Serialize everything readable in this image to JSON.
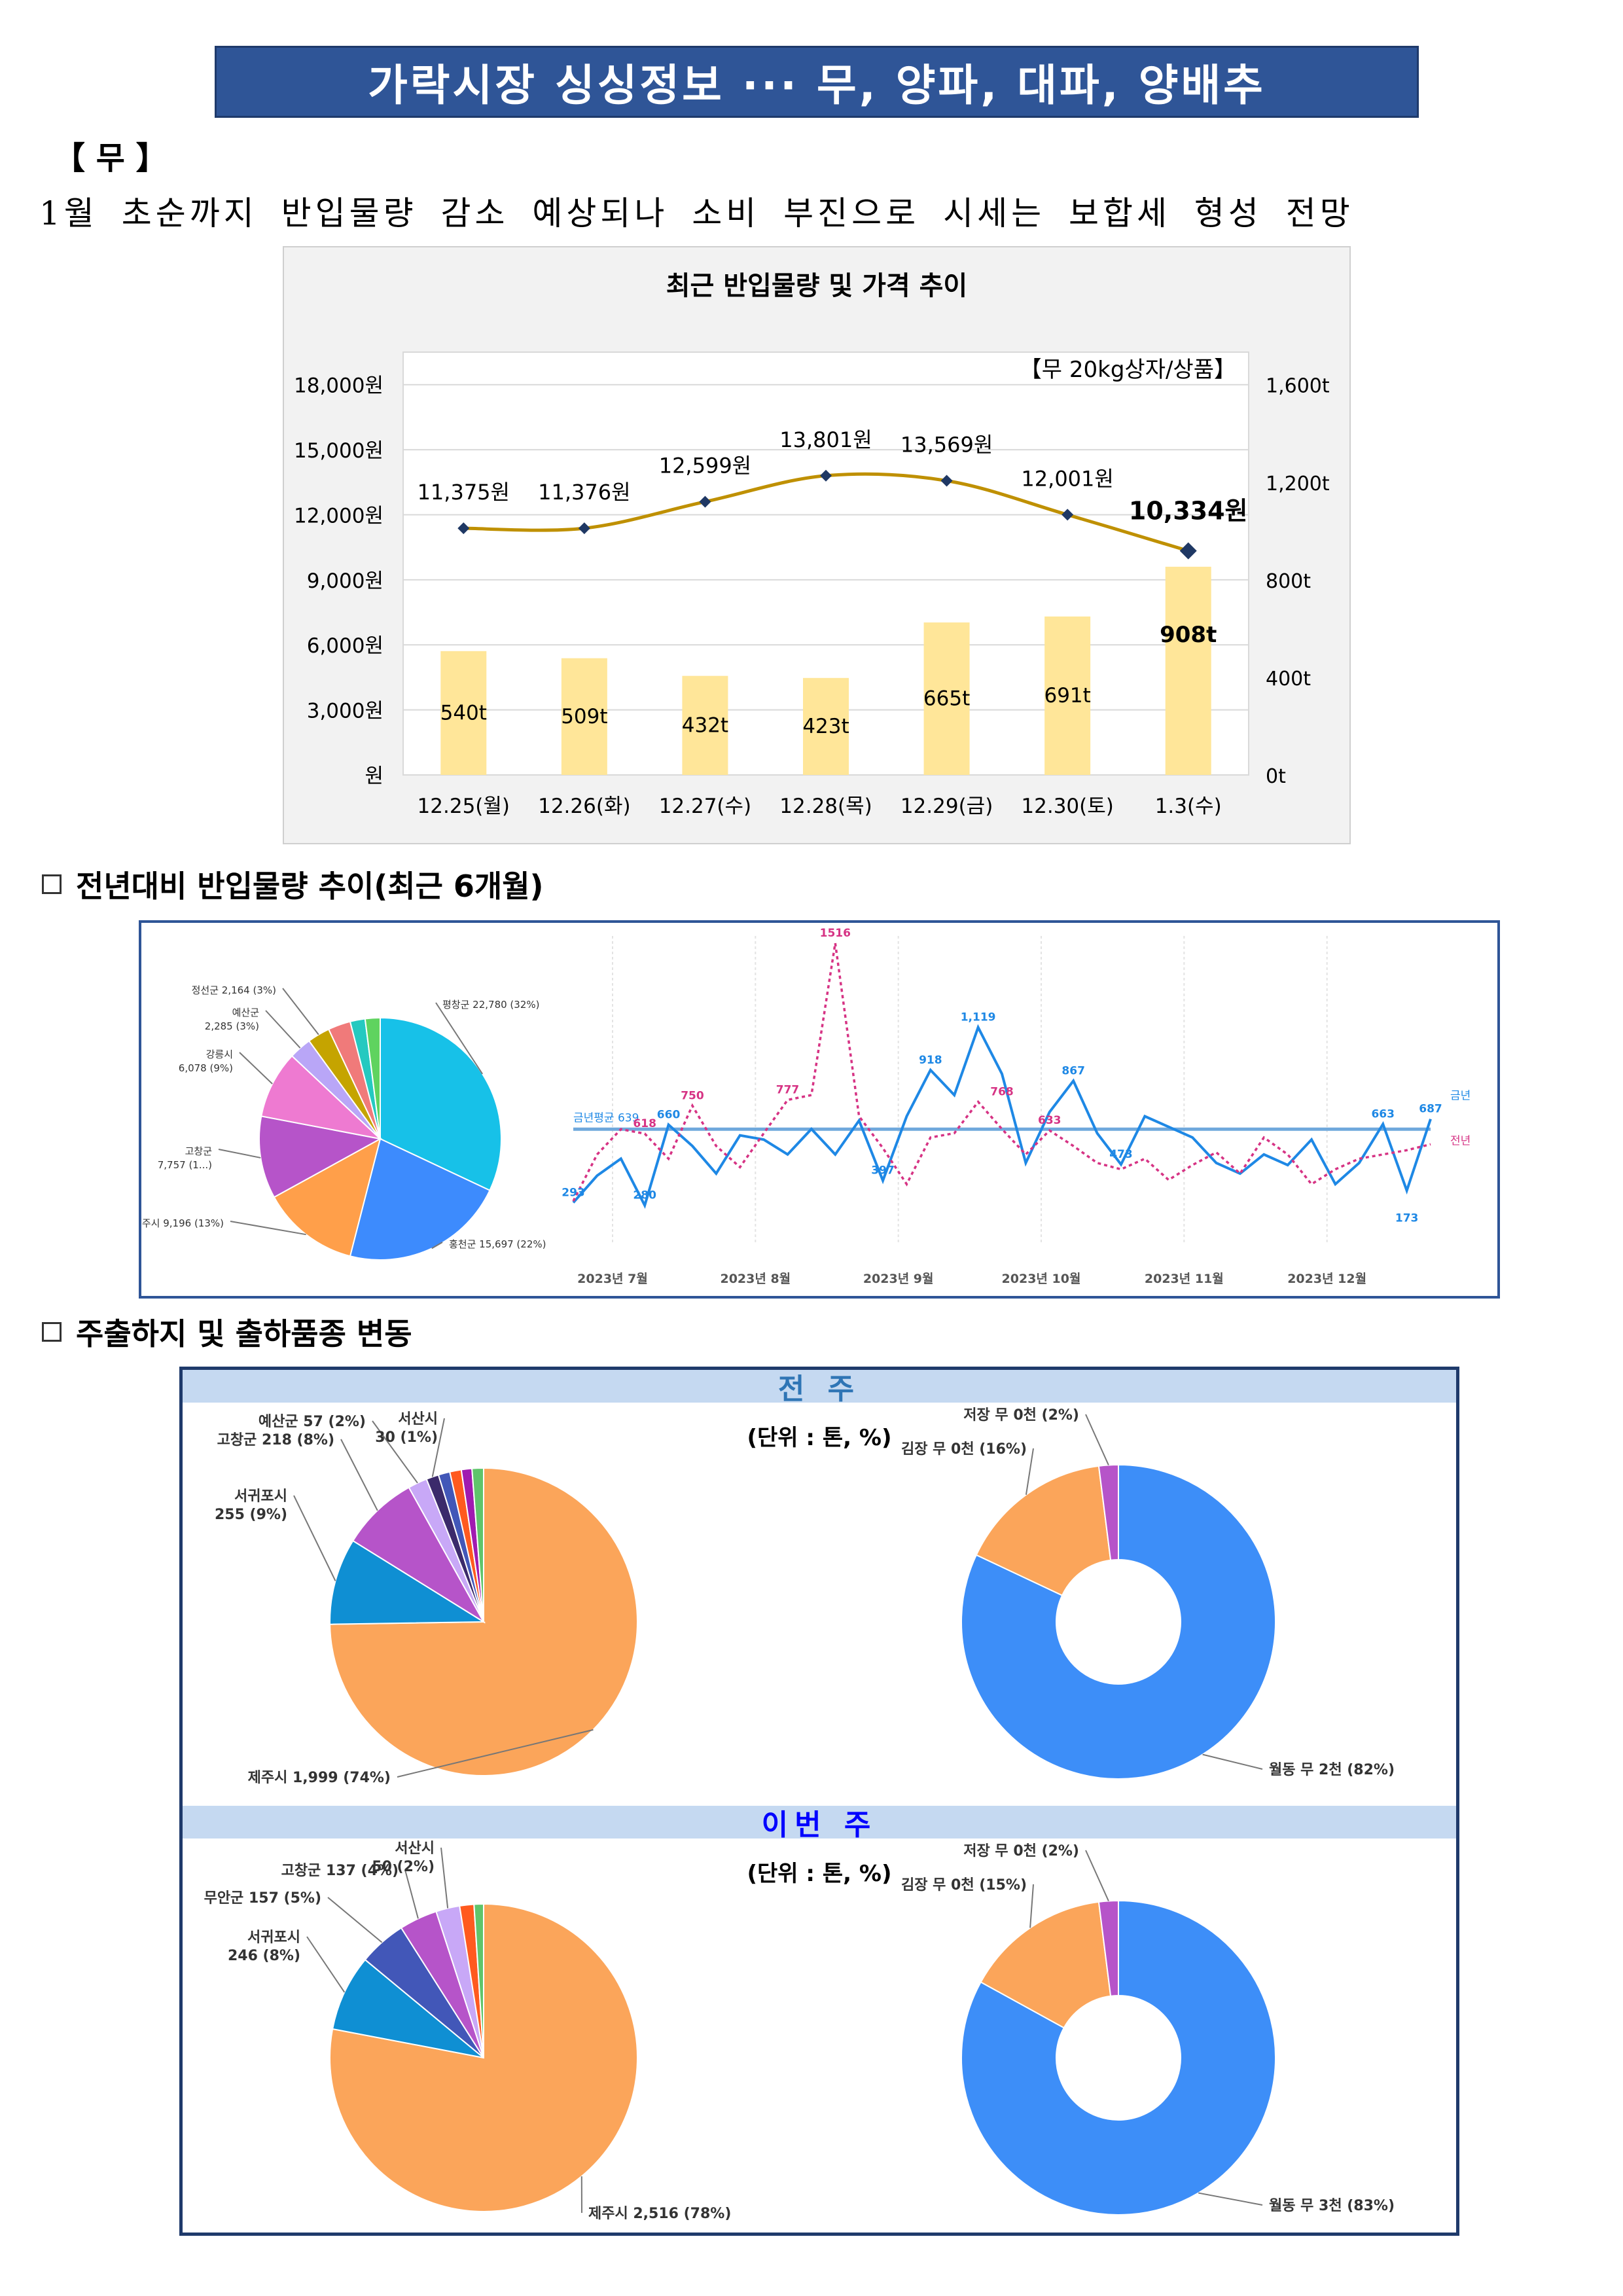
{
  "title": "가락시장 싱싱정보 ··· 무, 양파, 대파, 양배추",
  "section": "【 무 】",
  "summary": "1월 초순까지 반입물량 감소 예상되나 소비 부진으로 시세는 보합세 형성 전망",
  "section2_title": "전년대비 반입물량 추이(최근 6개월)",
  "section3_title": "주출하지 및 출하품종 변동",
  "prev_week_label": "전 주",
  "this_week_label": "이번 주",
  "unit_label": "(단위 : 톤, %)",
  "chart_data": [
    {
      "type": "bar+line",
      "title": "최근 반입물량 및 가격 추이",
      "note": "【무 20kg상자/상품】",
      "categories": [
        "12.25(월)",
        "12.26(화)",
        "12.27(수)",
        "12.28(목)",
        "12.29(금)",
        "12.30(토)",
        "1.3(수)"
      ],
      "volume": {
        "values": [
          540,
          509,
          432,
          423,
          665,
          691,
          908
        ],
        "labels": [
          "540t",
          "509t",
          "432t",
          "423t",
          "665t",
          "691t",
          "908t"
        ],
        "ylim": [
          0,
          1600
        ],
        "ticks": [
          "0t",
          "400t",
          "800t",
          "1,200t",
          "1,600t"
        ],
        "color": "#ffe699"
      },
      "price": {
        "values": [
          11375,
          11376,
          12599,
          13801,
          13569,
          12001,
          10334
        ],
        "labels": [
          "11,375원",
          "11,376원",
          "12,599원",
          "13,801원",
          "13,569원",
          "12,001원",
          "10,334원"
        ],
        "ylim": [
          0,
          19500
        ],
        "ticks": [
          "원",
          "3,000원",
          "6,000원",
          "9,000원",
          "12,000원",
          "15,000원",
          "18,000원"
        ],
        "color": "#bf9000"
      }
    },
    {
      "type": "pie",
      "slices": [
        {
          "label": "평창군 22,780 (32%)",
          "value": 32,
          "color": "#17c1e8"
        },
        {
          "label": "홍천군 15,697 (22%)",
          "value": 22,
          "color": "#3d8bfd"
        },
        {
          "label": "제주시 9,196 (13%)",
          "value": 13,
          "color": "#ff9f4a"
        },
        {
          "label": "고창군 7,757 (1...)",
          "value": 11,
          "color": "#b654c9"
        },
        {
          "label": "강릉시 6,078 (9%)",
          "value": 9,
          "color": "#ee7ad1"
        },
        {
          "label": "예산군 2,285 (3%)",
          "value": 3,
          "color": "#b9a6f7"
        },
        {
          "label": "정선군 2,164 (3%)",
          "value": 3,
          "color": "#c5a400"
        },
        {
          "label": "",
          "value": 3,
          "color": "#f07a7a"
        },
        {
          "label": "",
          "value": 2,
          "color": "#25c9c0"
        },
        {
          "label": "",
          "value": 2,
          "color": "#5fd35f"
        }
      ]
    },
    {
      "type": "line",
      "x_labels": [
        "2023년 7월",
        "2023년 8월",
        "2023년 9월",
        "2023년 10월",
        "2023년 11월",
        "2023년 12월"
      ],
      "series": [
        {
          "name": "금년",
          "color": "#1e88e5",
          "values": [
            293,
            420,
            500,
            280,
            660,
            560,
            430,
            610,
            590,
            520,
            640,
            520,
            680,
            397,
            700,
            918,
            800,
            1119,
            900,
            480,
            720,
            867,
            620,
            473,
            700,
            650,
            600,
            480,
            430,
            520,
            470,
            590,
            380,
            480,
            663,
            350,
            687
          ]
        },
        {
          "name": "전년",
          "color": "#d63384",
          "values": [
            300,
            520,
            639,
            618,
            500,
            750,
            560,
            460,
            620,
            777,
            800,
            1516,
            700,
            550,
            380,
            600,
            620,
            768,
            640,
            520,
            633,
            560,
            480,
            450,
            500,
            400,
            470,
            530,
            430,
            600,
            520,
            380,
            450,
            500,
            520,
            540,
            568
          ]
        }
      ],
      "reference_label": "금년평균 639",
      "annotations": [
        "1516",
        "1,119",
        "918",
        "867",
        "777",
        "768",
        "750",
        "660",
        "663",
        "687",
        "633",
        "618",
        "397",
        "473",
        "293",
        "280",
        "173"
      ]
    },
    {
      "type": "pie",
      "period": "전 주",
      "slices": [
        {
          "label": "제주시 1,999 (74%)",
          "value": 74,
          "color": "#fba55a"
        },
        {
          "label": "서귀포시 255 (9%)",
          "value": 9,
          "color": "#0f8fd3"
        },
        {
          "label": "고창군 218 (8%)",
          "value": 8,
          "color": "#b654c9"
        },
        {
          "label": "예산군 57 (2%)",
          "value": 2,
          "color": "#c8a8f7"
        },
        {
          "label": "서산시 30 (1%)",
          "value": 1.3,
          "color": "#3b2a6b"
        },
        {
          "label": "",
          "value": 1.2,
          "color": "#4257b8"
        },
        {
          "label": "",
          "value": 1.2,
          "color": "#ff5a1f"
        },
        {
          "label": "",
          "value": 1.1,
          "color": "#a01bb0"
        },
        {
          "label": "",
          "value": 1.2,
          "color": "#5fc56b"
        }
      ]
    },
    {
      "type": "donut",
      "period": "전 주",
      "slices": [
        {
          "label": "월동 무 2천 (82%)",
          "value": 82,
          "color": "#3d8ef8"
        },
        {
          "label": "김장 무 0천 (16%)",
          "value": 16,
          "color": "#fba55a"
        },
        {
          "label": "저장 무 0천 (2%)",
          "value": 2,
          "color": "#b654c9"
        }
      ]
    },
    {
      "type": "pie",
      "period": "이번 주",
      "slices": [
        {
          "label": "제주시 2,516 (78%)",
          "value": 78,
          "color": "#fba55a"
        },
        {
          "label": "서귀포시 246 (8%)",
          "value": 8,
          "color": "#0f8fd3"
        },
        {
          "label": "무안군 157 (5%)",
          "value": 5,
          "color": "#4257b8"
        },
        {
          "label": "고창군 137 (4%)",
          "value": 4,
          "color": "#b654c9"
        },
        {
          "label": "서산시 50 (2%)",
          "value": 2.5,
          "color": "#c8a8f7"
        },
        {
          "label": "",
          "value": 1.5,
          "color": "#ff5a1f"
        },
        {
          "label": "",
          "value": 1.0,
          "color": "#5fc56b"
        }
      ]
    },
    {
      "type": "donut",
      "period": "이번 주",
      "slices": [
        {
          "label": "월동 무 3천 (83%)",
          "value": 83,
          "color": "#3d8ef8"
        },
        {
          "label": "김장 무 0천 (15%)",
          "value": 15,
          "color": "#fba55a"
        },
        {
          "label": "저장 무 0천 (2%)",
          "value": 2,
          "color": "#b654c9"
        }
      ]
    }
  ]
}
